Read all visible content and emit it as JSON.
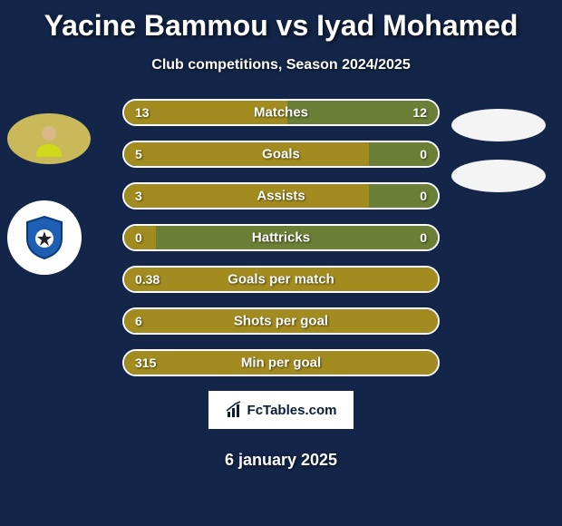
{
  "title": "Yacine Bammou vs Iyad Mohamed",
  "subtitle": "Club competitions, Season 2024/2025",
  "date": "6 january 2025",
  "logo_text": "FcTables.com",
  "colors": {
    "background": "#132548",
    "player1_bar": "#a38c1f",
    "player2_bar": "#6b7f36",
    "border": "#ffffff",
    "text": "#ffffff",
    "avatar_left_bg": "#c9b95a",
    "club_left_bg": "#ffffff",
    "avatar_right_bg": "#f4f4f4"
  },
  "avatars": {
    "left": {
      "player_bg": "#c9b95a",
      "club_bg": "#ffffff"
    },
    "right": {
      "player_bg": "#f4f4f4",
      "club_bg": "#f4f4f4"
    }
  },
  "stats": [
    {
      "label": "Matches",
      "left_val": "13",
      "right_val": "12",
      "left_pct": 52,
      "left_color": "#a38c1f",
      "right_color": "#6b7f36"
    },
    {
      "label": "Goals",
      "left_val": "5",
      "right_val": "0",
      "left_pct": 78,
      "left_color": "#a38c1f",
      "right_color": "#6b7f36"
    },
    {
      "label": "Assists",
      "left_val": "3",
      "right_val": "0",
      "left_pct": 78,
      "left_color": "#a38c1f",
      "right_color": "#6b7f36"
    },
    {
      "label": "Hattricks",
      "left_val": "0",
      "right_val": "0",
      "left_pct": 10,
      "left_color": "#a38c1f",
      "right_color": "#6b7f36"
    },
    {
      "label": "Goals per match",
      "left_val": "0.38",
      "right_val": "",
      "left_pct": 100,
      "left_color": "#a38c1f",
      "right_color": "#a38c1f"
    },
    {
      "label": "Shots per goal",
      "left_val": "6",
      "right_val": "",
      "left_pct": 100,
      "left_color": "#a38c1f",
      "right_color": "#a38c1f"
    },
    {
      "label": "Min per goal",
      "left_val": "315",
      "right_val": "",
      "left_pct": 100,
      "left_color": "#a38c1f",
      "right_color": "#a38c1f"
    }
  ]
}
